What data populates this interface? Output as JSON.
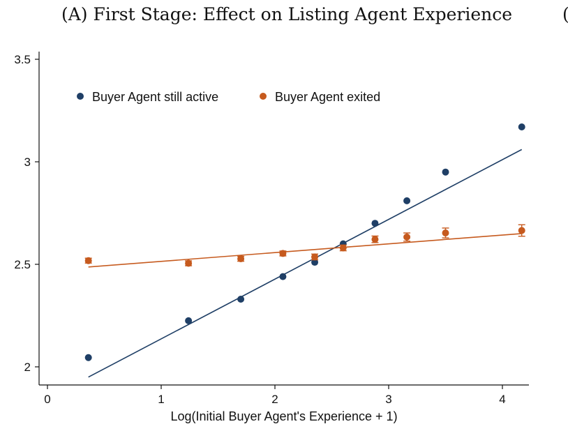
{
  "panel_title": "(A) First Stage: Effect on Listing Agent Experience",
  "next_panel_title_fragment": "(",
  "colors": {
    "active": "#1f3f66",
    "exited": "#c65a1e",
    "axis": "#111111"
  },
  "chart_data": {
    "type": "scatter",
    "title": "(A) First Stage: Effect on Listing Agent Experience",
    "xlabel": "Log(Initial Buyer Agent's Experience + 1)",
    "ylabel": "",
    "xlim": [
      0,
      4.25
    ],
    "ylim": [
      1.95,
      3.55
    ],
    "x_ticks": [
      0,
      1,
      2,
      3,
      4
    ],
    "x_tick_labels": [
      "0",
      "1",
      "2",
      "3",
      "4"
    ],
    "y_ticks": [
      2,
      2.5,
      3,
      3.5
    ],
    "y_tick_labels": [
      "2",
      "2.5",
      "3",
      "3.5"
    ],
    "grid": false,
    "legend_position": "top-left",
    "series": [
      {
        "name": "Buyer Agent still active",
        "color": "#1f3f66",
        "x": [
          0.36,
          1.24,
          1.7,
          2.07,
          2.35,
          2.6,
          2.88,
          3.16,
          3.5,
          4.17
        ],
        "y": [
          2.045,
          2.225,
          2.33,
          2.44,
          2.51,
          2.6,
          2.7,
          2.81,
          2.95,
          3.17
        ],
        "err": [
          0.005,
          0.005,
          0.005,
          0.005,
          0.005,
          0.005,
          0.005,
          0.005,
          0.005,
          0.005
        ],
        "fit": {
          "x": [
            0.36,
            4.17
          ],
          "y": [
            1.95,
            3.06
          ]
        }
      },
      {
        "name": "Buyer Agent exited",
        "color": "#c65a1e",
        "x": [
          0.36,
          1.24,
          1.7,
          2.07,
          2.35,
          2.6,
          2.88,
          3.16,
          3.5,
          4.17
        ],
        "y": [
          2.518,
          2.505,
          2.527,
          2.553,
          2.536,
          2.58,
          2.622,
          2.633,
          2.653,
          2.665
        ],
        "err": [
          0.012,
          0.012,
          0.012,
          0.012,
          0.014,
          0.014,
          0.016,
          0.02,
          0.024,
          0.028
        ],
        "fit": {
          "x": [
            0.36,
            4.17
          ],
          "y": [
            2.487,
            2.65
          ]
        }
      }
    ]
  }
}
